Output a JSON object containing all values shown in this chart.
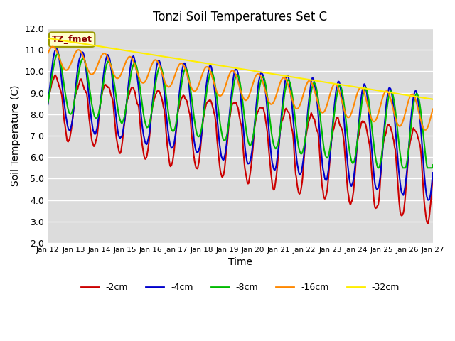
{
  "title": "Tonzi Soil Temperatures Set C",
  "xlabel": "Time",
  "ylabel": "Soil Temperature (C)",
  "ylim": [
    2.0,
    12.0
  ],
  "yticks": [
    2.0,
    3.0,
    4.0,
    5.0,
    6.0,
    7.0,
    8.0,
    9.0,
    10.0,
    11.0,
    12.0
  ],
  "xtick_labels": [
    "Jan 12",
    "Jan 13",
    "Jan 14",
    "Jan 15",
    "Jan 16",
    "Jan 17",
    "Jan 18",
    "Jan 19",
    "Jan 20",
    "Jan 21",
    "Jan 22",
    "Jan 23",
    "Jan 24",
    "Jan 25",
    "Jan 26",
    "Jan 27"
  ],
  "colors": {
    "-2cm": "#cc0000",
    "-4cm": "#0000cc",
    "-8cm": "#00bb00",
    "-16cm": "#ff8800",
    "-32cm": "#ffee00"
  },
  "bg_color": "#dcdcdc",
  "annotation_text": "TZ_fmet",
  "annotation_bg": "#ffffcc",
  "annotation_border": "#999900"
}
